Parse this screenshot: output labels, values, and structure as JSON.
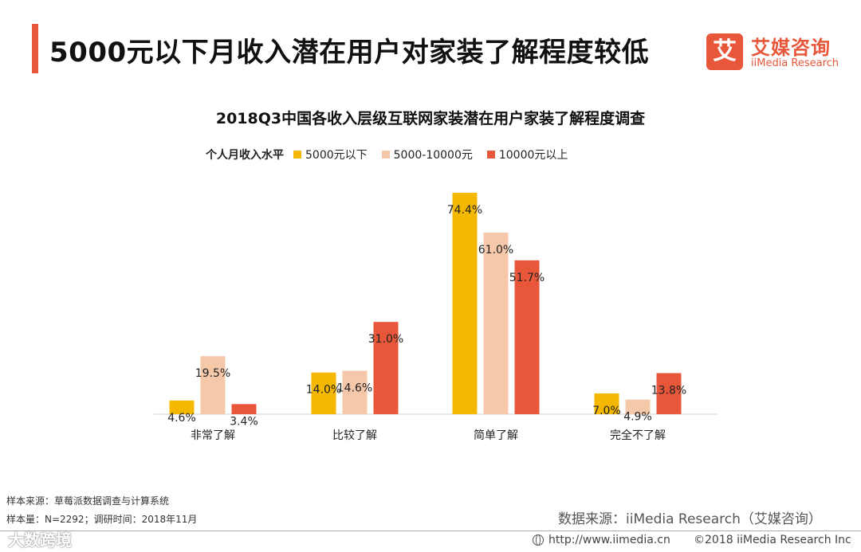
{
  "header": {
    "title": "5000元以下月收入潜在用户对家装了解程度较低",
    "logo_mark": "艾",
    "logo_cn": "艾媒咨询",
    "logo_en": "iiMedia Research"
  },
  "colors": {
    "accent": "#e8573a",
    "series": [
      "#f5b800",
      "#f6c8aa",
      "#e8573a"
    ]
  },
  "chart_data": {
    "type": "bar",
    "title": "2018Q3中国各收入层级互联网家装潜在用户家装了解程度调查",
    "legend_title": "个人月收入水平",
    "categories": [
      "非常了解",
      "比较了解",
      "简单了解",
      "完全不了解"
    ],
    "series": [
      {
        "name": "5000元以下",
        "values": [
          4.6,
          14.0,
          74.4,
          7.0
        ]
      },
      {
        "name": "5000-10000元",
        "values": [
          19.5,
          14.6,
          61.0,
          4.9
        ]
      },
      {
        "name": "10000元以上",
        "values": [
          3.4,
          31.0,
          51.7,
          13.8
        ]
      }
    ],
    "labels": [
      [
        "4.6%",
        "14.0%",
        "74.4%",
        "7.0%"
      ],
      [
        "19.5%",
        "14.6%",
        "61.0%",
        "4.9%"
      ],
      [
        "3.4%",
        "31.0%",
        "51.7%",
        "13.8%"
      ]
    ],
    "unit": "%",
    "ylim": [
      0,
      80
    ],
    "grid": false,
    "legend_position": "top-left"
  },
  "notes": {
    "sample_source": "样本来源：草莓派数据调查与计算系统",
    "sample_size": "样本量：N=2292；调研时间：2018年11月"
  },
  "source": "数据来源：iiMedia Research（艾媒咨询）",
  "footer": {
    "url": "http://www.iimedia.cn",
    "copyright": "©2018  iiMedia Research  Inc"
  },
  "watermark": "大数跨境"
}
